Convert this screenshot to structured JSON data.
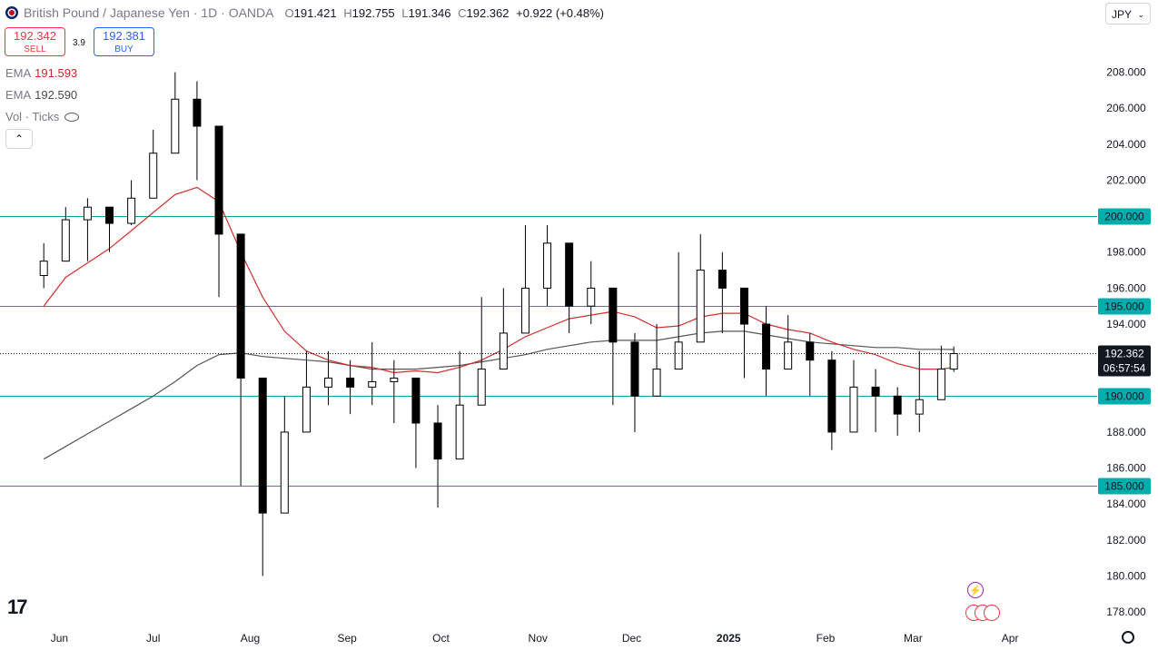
{
  "header": {
    "symbol": "British Pound / Japanese Yen · 1D · OANDA",
    "open_key": "O",
    "open": "191.421",
    "high_key": "H",
    "high": "192.755",
    "low_key": "L",
    "low": "191.346",
    "close_key": "C",
    "close": "192.362",
    "change": "+0.922 (+0.48%)"
  },
  "trade": {
    "sell_price": "192.342",
    "sell_label": "SELL",
    "spread": "3.9",
    "buy_price": "192.381",
    "buy_label": "BUY"
  },
  "indicators": {
    "ema1_label": "EMA",
    "ema1_value": "191.593",
    "ema2_label": "EMA",
    "ema2_value": "192.590",
    "vol_label": "Vol · Ticks"
  },
  "currency_selector": "JPY",
  "collapse_icon": "chevron-up-icon",
  "colors": {
    "candle": "#000000",
    "ema_fast": "#d32f2f",
    "ema_slow": "#555555",
    "hline": "#00a3a3",
    "label_bg": "#00acac",
    "price_label_bg": "#131722"
  },
  "chart_data": {
    "type": "candlestick",
    "y_axis_ticks": [
      "178.000",
      "180.000",
      "182.000",
      "184.000",
      "186.000",
      "188.000",
      "190.000",
      "192.000",
      "194.000",
      "196.000",
      "198.000",
      "200.000",
      "202.000",
      "204.000",
      "206.000",
      "208.000"
    ],
    "x_axis_ticks": [
      "Jun",
      "Jul",
      "Aug",
      "Sep",
      "Oct",
      "Nov",
      "Dec",
      "2025",
      "Feb",
      "Mar",
      "Apr"
    ],
    "ylim": [
      177.3,
      210.5
    ],
    "horizontal_levels": [
      "200.000",
      "195.000",
      "190.000",
      "185.000"
    ],
    "current_price": "192.362",
    "countdown": "06:57:54",
    "x_dates": [
      "2024-05-27",
      "2024-06-03",
      "2024-06-10",
      "2024-06-17",
      "2024-06-24",
      "2024-07-01",
      "2024-07-08",
      "2024-07-15",
      "2024-07-22",
      "2024-07-29",
      "2024-08-05",
      "2024-08-12",
      "2024-08-19",
      "2024-08-26",
      "2024-09-02",
      "2024-09-09",
      "2024-09-16",
      "2024-09-23",
      "2024-09-30",
      "2024-10-07",
      "2024-10-14",
      "2024-10-21",
      "2024-10-28",
      "2024-11-04",
      "2024-11-11",
      "2024-11-18",
      "2024-11-25",
      "2024-12-02",
      "2024-12-09",
      "2024-12-16",
      "2024-12-23",
      "2024-12-30",
      "2025-01-06",
      "2025-01-13",
      "2025-01-20",
      "2025-01-27",
      "2025-02-03",
      "2025-02-10",
      "2025-02-17",
      "2025-02-24",
      "2025-03-03",
      "2025-03-10",
      "2025-03-14"
    ],
    "close": [
      197.5,
      199.8,
      200.5,
      199.6,
      201.0,
      203.5,
      206.5,
      205.0,
      199.0,
      191.0,
      183.5,
      188.0,
      190.5,
      191.0,
      190.5,
      190.8,
      191.0,
      188.5,
      186.5,
      189.5,
      191.5,
      193.5,
      196.0,
      198.5,
      195.0,
      196.0,
      193.0,
      190.0,
      191.5,
      193.0,
      197.0,
      196.0,
      194.0,
      191.5,
      193.0,
      192.0,
      188.0,
      190.5,
      190.0,
      189.0,
      189.8,
      191.5,
      192.36
    ],
    "high": [
      198.5,
      200.5,
      201.0,
      200.5,
      202.0,
      204.8,
      208.0,
      207.5,
      201.0,
      196.0,
      189.0,
      190.0,
      192.5,
      192.5,
      192.0,
      193.0,
      192.0,
      191.0,
      189.5,
      192.5,
      195.5,
      196.0,
      199.5,
      199.5,
      198.0,
      197.5,
      195.0,
      193.5,
      194.0,
      198.0,
      199.0,
      198.0,
      195.5,
      195.0,
      194.5,
      193.5,
      192.5,
      192.0,
      191.5,
      190.5,
      192.5,
      192.8,
      192.755
    ],
    "low": [
      196.0,
      198.5,
      197.5,
      198.0,
      199.5,
      202.5,
      204.5,
      202.0,
      195.5,
      185.0,
      180.0,
      186.0,
      188.5,
      189.5,
      189.0,
      189.5,
      188.5,
      186.0,
      183.8,
      186.5,
      190.0,
      192.0,
      194.5,
      195.0,
      193.5,
      194.0,
      189.5,
      188.0,
      190.0,
      192.0,
      194.5,
      193.5,
      191.0,
      190.0,
      191.5,
      190.0,
      187.0,
      188.0,
      188.0,
      187.8,
      188.0,
      190.5,
      191.346
    ],
    "ema_fast_label": "EMA",
    "ema_fast_value": 191.593,
    "ema_fast": [
      195.0,
      196.6,
      197.4,
      198.2,
      199.2,
      200.2,
      201.2,
      201.6,
      200.8,
      198.0,
      195.5,
      193.6,
      192.5,
      192.0,
      191.7,
      191.6,
      191.3,
      191.4,
      191.3,
      191.6,
      192.0,
      192.6,
      193.3,
      193.8,
      194.3,
      194.5,
      194.7,
      194.4,
      193.8,
      193.9,
      194.4,
      194.6,
      194.6,
      194.0,
      193.7,
      193.5,
      193.0,
      192.6,
      192.3,
      191.8,
      191.5,
      191.5,
      191.593
    ],
    "ema_slow_label": "EMA",
    "ema_slow_value": 192.59,
    "ema_slow": [
      186.5,
      187.2,
      187.9,
      188.6,
      189.3,
      190.0,
      190.8,
      191.7,
      192.3,
      192.4,
      192.2,
      192.1,
      192.0,
      191.9,
      191.7,
      191.5,
      191.5,
      191.5,
      191.6,
      191.7,
      191.9,
      192.1,
      192.3,
      192.6,
      192.8,
      193.0,
      193.1,
      193.1,
      193.1,
      193.3,
      193.5,
      193.6,
      193.6,
      193.4,
      193.2,
      193.0,
      192.9,
      192.8,
      192.7,
      192.7,
      192.6,
      192.6,
      192.59
    ]
  }
}
